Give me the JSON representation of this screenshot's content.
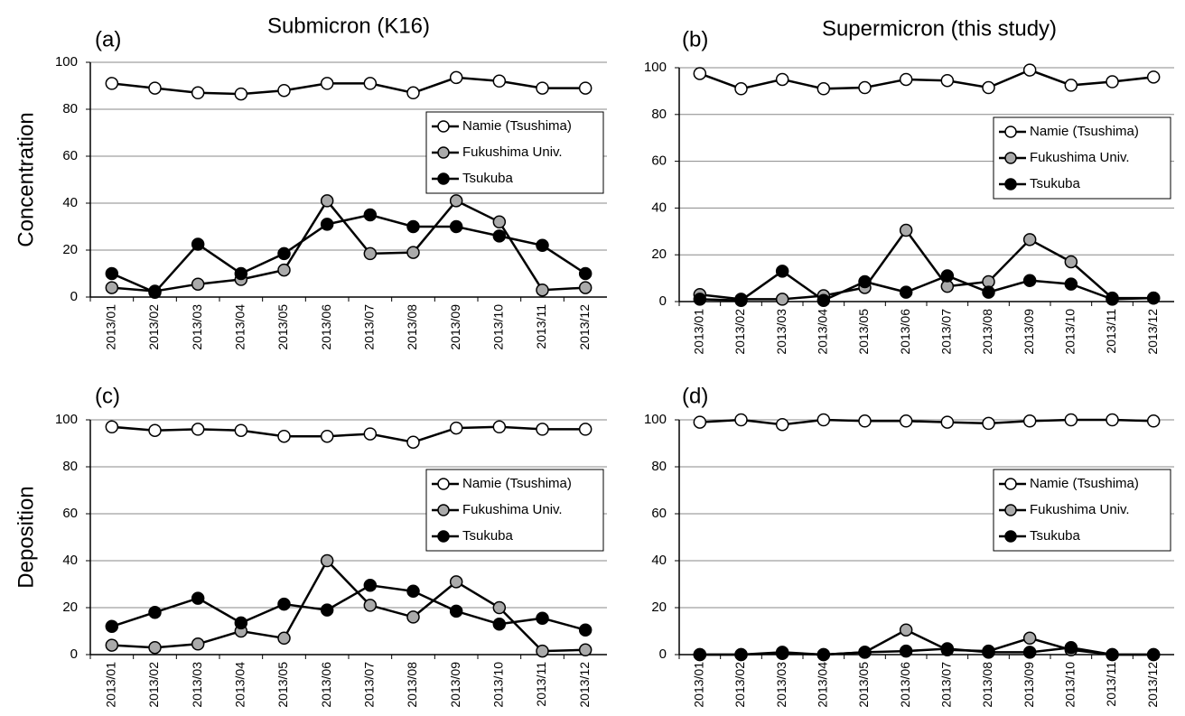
{
  "chart_data": [
    {
      "type": "line",
      "panel_label": "(a)",
      "title": "Submicron (K16)",
      "ylabel": "Concentration",
      "categories": [
        "2013/01",
        "2013/02",
        "2013/03",
        "2013/04",
        "2013/05",
        "2013/06",
        "2013/07",
        "2013/08",
        "2013/09",
        "2013/10",
        "2013/11",
        "2013/12"
      ],
      "series": [
        {
          "name": "Namie (Tsushima)",
          "color": "#ffffff",
          "values": [
            91,
            89,
            87,
            86.5,
            88,
            91,
            91,
            87,
            93.5,
            92,
            89,
            89
          ]
        },
        {
          "name": "Fukushima Univ.",
          "color": "#aaaaaa",
          "values": [
            4,
            2.5,
            5.5,
            7.5,
            11.5,
            41,
            18.5,
            19,
            41,
            32,
            3,
            4
          ]
        },
        {
          "name": "Tsukuba",
          "color": "#000000",
          "values": [
            10,
            2,
            22.5,
            10,
            18.5,
            31,
            35,
            30,
            30,
            26,
            22,
            10
          ]
        }
      ],
      "ylim": [
        0,
        100
      ],
      "yticks": [
        0,
        20,
        40,
        60,
        80,
        100
      ],
      "grid": true,
      "legend": "upper right"
    },
    {
      "type": "line",
      "panel_label": "(b)",
      "title": "Supermicron (this study)",
      "categories": [
        "2013/01",
        "2013/02",
        "2013/03",
        "2013/04",
        "2013/05",
        "2013/06",
        "2013/07",
        "2013/08",
        "2013/09",
        "2013/10",
        "2013/11",
        "2013/12"
      ],
      "series": [
        {
          "name": "Namie (Tsushima)",
          "color": "#ffffff",
          "values": [
            97.5,
            91,
            95,
            91,
            91.5,
            95,
            94.5,
            91.5,
            99,
            92.5,
            94,
            96
          ]
        },
        {
          "name": "Fukushima Univ.",
          "color": "#aaaaaa",
          "values": [
            3,
            1,
            1,
            2.5,
            6,
            30.5,
            6.5,
            8.5,
            26.5,
            17,
            1.5,
            1.5
          ]
        },
        {
          "name": "Tsukuba",
          "color": "#000000",
          "values": [
            1,
            0.5,
            13,
            0.5,
            8.5,
            4,
            11,
            4,
            9,
            7.5,
            1,
            1.5
          ]
        }
      ],
      "ylim": [
        0,
        100
      ],
      "yticks": [
        0,
        20,
        40,
        60,
        80,
        100
      ],
      "grid": true,
      "legend": "upper right"
    },
    {
      "type": "line",
      "panel_label": "(c)",
      "ylabel": "Deposition",
      "categories": [
        "2013/01",
        "2013/02",
        "2013/03",
        "2013/04",
        "2013/05",
        "2013/06",
        "2013/07",
        "2013/08",
        "2013/09",
        "2013/10",
        "2013/11",
        "2013/12"
      ],
      "series": [
        {
          "name": "Namie (Tsushima)",
          "color": "#ffffff",
          "values": [
            97,
            95.5,
            96,
            95.5,
            93,
            93,
            94,
            90.5,
            96.5,
            97,
            96,
            96
          ]
        },
        {
          "name": "Fukushima Univ.",
          "color": "#aaaaaa",
          "values": [
            4,
            3,
            4.5,
            10,
            7,
            40,
            21,
            16,
            31,
            20,
            1.5,
            2
          ]
        },
        {
          "name": "Tsukuba",
          "color": "#000000",
          "values": [
            12,
            18,
            24,
            13.5,
            21.5,
            19,
            29.5,
            27,
            18.5,
            13,
            15.5,
            10.5
          ]
        }
      ],
      "ylim": [
        0,
        100
      ],
      "yticks": [
        0,
        20,
        40,
        60,
        80,
        100
      ],
      "grid": true,
      "legend": "upper right"
    },
    {
      "type": "line",
      "panel_label": "(d)",
      "categories": [
        "2013/01",
        "2013/02",
        "2013/03",
        "2013/04",
        "2013/05",
        "2013/06",
        "2013/07",
        "2013/08",
        "2013/09",
        "2013/10",
        "2013/11",
        "2013/12"
      ],
      "series": [
        {
          "name": "Namie (Tsushima)",
          "color": "#ffffff",
          "values": [
            99,
            100,
            98,
            100,
            99.5,
            99.5,
            99,
            98.5,
            99.5,
            100,
            100,
            99.5
          ]
        },
        {
          "name": "Fukushima Univ.",
          "color": "#aaaaaa",
          "values": [
            0,
            0,
            1,
            0,
            1,
            10.5,
            2,
            1.5,
            7,
            2,
            0,
            0
          ]
        },
        {
          "name": "Tsukuba",
          "color": "#000000",
          "values": [
            0,
            0,
            0.5,
            0,
            1,
            1.5,
            2.5,
            1,
            1,
            3,
            0,
            0
          ]
        }
      ],
      "ylim": [
        0,
        100
      ],
      "yticks": [
        0,
        20,
        40,
        60,
        80,
        100
      ],
      "grid": true,
      "legend": "upper right"
    }
  ]
}
